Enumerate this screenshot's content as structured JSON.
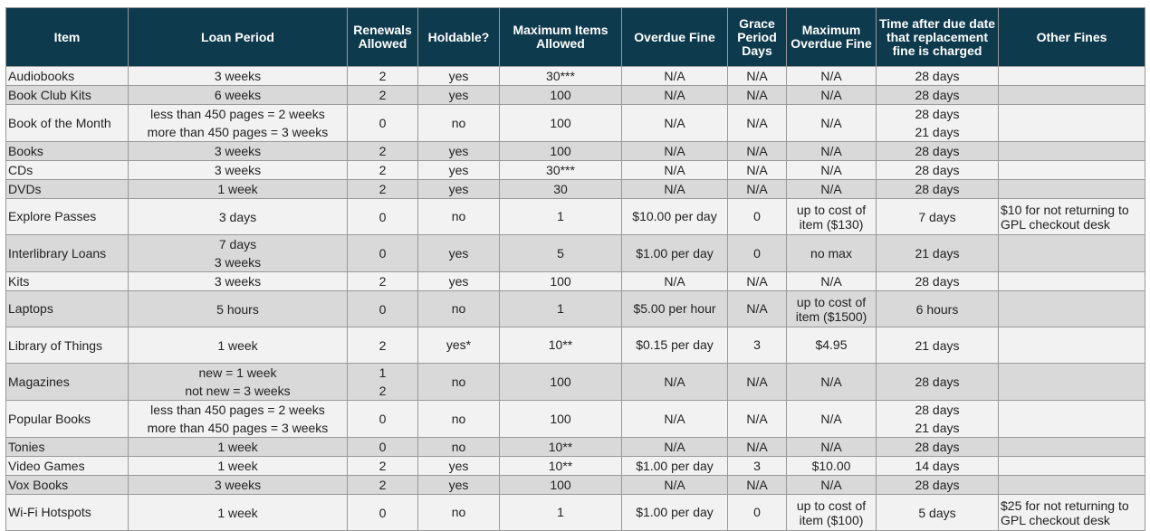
{
  "headers": [
    "Item",
    "Loan Period",
    "Renewals Allowed",
    "Holdable?",
    "Maximum Items Allowed",
    "Overdue Fine",
    "Grace Period Days",
    "Maximum Overdue Fine",
    "Time after due date that replacement fine is charged",
    "Other Fines"
  ],
  "rows": [
    {
      "item": "Audiobooks",
      "loan": [
        "3 weeks"
      ],
      "renewals": [
        "2"
      ],
      "holdable": "yes",
      "max_items": "30***",
      "overdue_fine": "N/A",
      "grace": "N/A",
      "max_fine": "N/A",
      "replacement": [
        "28 days"
      ],
      "other": ""
    },
    {
      "item": "Book Club Kits",
      "loan": [
        "6 weeks"
      ],
      "renewals": [
        "2"
      ],
      "holdable": "yes",
      "max_items": "100",
      "overdue_fine": "N/A",
      "grace": "N/A",
      "max_fine": "N/A",
      "replacement": [
        "28 days"
      ],
      "other": ""
    },
    {
      "item": "Book of the Month",
      "loan": [
        "less than 450 pages = 2 weeks",
        "more than 450 pages = 3 weeks"
      ],
      "renewals": [
        "0"
      ],
      "holdable": "no",
      "max_items": "100",
      "overdue_fine": "N/A",
      "grace": "N/A",
      "max_fine": "N/A",
      "replacement": [
        "28 days",
        "21 days"
      ],
      "other": ""
    },
    {
      "item": "Books",
      "loan": [
        "3 weeks"
      ],
      "renewals": [
        "2"
      ],
      "holdable": "yes",
      "max_items": "100",
      "overdue_fine": "N/A",
      "grace": "N/A",
      "max_fine": "N/A",
      "replacement": [
        "28 days"
      ],
      "other": ""
    },
    {
      "item": "CDs",
      "loan": [
        "3 weeks"
      ],
      "renewals": [
        "2"
      ],
      "holdable": "yes",
      "max_items": "30***",
      "overdue_fine": "N/A",
      "grace": "N/A",
      "max_fine": "N/A",
      "replacement": [
        "28 days"
      ],
      "other": ""
    },
    {
      "item": "DVDs",
      "loan": [
        "1 week"
      ],
      "renewals": [
        "2"
      ],
      "holdable": "yes",
      "max_items": "30",
      "overdue_fine": "N/A",
      "grace": "N/A",
      "max_fine": "N/A",
      "replacement": [
        "28 days"
      ],
      "other": ""
    },
    {
      "item": "Explore Passes",
      "loan": [
        "3 days"
      ],
      "renewals": [
        "0"
      ],
      "holdable": "no",
      "max_items": "1",
      "overdue_fine": "$10.00 per day",
      "grace": "0",
      "max_fine": "up to cost of item ($130)",
      "replacement": [
        "7 days"
      ],
      "other": "$10 for not returning to GPL checkout desk"
    },
    {
      "item": "Interlibrary Loans",
      "loan": [
        "7 days",
        "3 weeks"
      ],
      "renewals": [
        "0"
      ],
      "holdable": "yes",
      "max_items": "5",
      "overdue_fine": "$1.00 per day",
      "grace": "0",
      "max_fine": "no max",
      "replacement": [
        "21 days"
      ],
      "other": ""
    },
    {
      "item": "Kits",
      "loan": [
        "3 weeks"
      ],
      "renewals": [
        "2"
      ],
      "holdable": "yes",
      "max_items": "100",
      "overdue_fine": "N/A",
      "grace": "N/A",
      "max_fine": "N/A",
      "replacement": [
        "28 days"
      ],
      "other": ""
    },
    {
      "item": "Laptops",
      "loan": [
        "5 hours"
      ],
      "renewals": [
        "0"
      ],
      "holdable": "no",
      "max_items": "1",
      "overdue_fine": "$5.00 per hour",
      "grace": "N/A",
      "max_fine": "up to cost of item ($1500)",
      "replacement": [
        "6 hours"
      ],
      "other": ""
    },
    {
      "item": "Library of Things",
      "loan": [
        "1 week"
      ],
      "renewals": [
        "2"
      ],
      "holdable": "yes*",
      "max_items": "10**",
      "overdue_fine": "$0.15 per day",
      "grace": "3",
      "max_fine": "$4.95",
      "replacement": [
        "21 days"
      ],
      "other": ""
    },
    {
      "item": "Magazines",
      "loan": [
        "new = 1 week",
        "not new = 3 weeks"
      ],
      "renewals": [
        "1",
        "2"
      ],
      "holdable": "no",
      "max_items": "100",
      "overdue_fine": "N/A",
      "grace": "N/A",
      "max_fine": "N/A",
      "replacement": [
        "28 days"
      ],
      "other": ""
    },
    {
      "item": "Popular Books",
      "loan": [
        "less than 450 pages = 2 weeks",
        "more than 450 pages = 3 weeks"
      ],
      "renewals": [
        "0"
      ],
      "holdable": "no",
      "max_items": "100",
      "overdue_fine": "N/A",
      "grace": "N/A",
      "max_fine": "N/A",
      "replacement": [
        "28 days",
        "21 days"
      ],
      "other": ""
    },
    {
      "item": "Tonies",
      "loan": [
        "1 week"
      ],
      "renewals": [
        "0"
      ],
      "holdable": "no",
      "max_items": "10**",
      "overdue_fine": "N/A",
      "grace": "N/A",
      "max_fine": "N/A",
      "replacement": [
        "28 days"
      ],
      "other": ""
    },
    {
      "item": "Video Games",
      "loan": [
        "1 week"
      ],
      "renewals": [
        "2"
      ],
      "holdable": "yes",
      "max_items": "10**",
      "overdue_fine": "$1.00 per day",
      "grace": "3",
      "max_fine": "$10.00",
      "replacement": [
        "14 days"
      ],
      "other": ""
    },
    {
      "item": "Vox Books",
      "loan": [
        "3 weeks"
      ],
      "renewals": [
        "2"
      ],
      "holdable": "yes",
      "max_items": "100",
      "overdue_fine": "N/A",
      "grace": "N/A",
      "max_fine": "N/A",
      "replacement": [
        "28 days"
      ],
      "other": ""
    },
    {
      "item": "Wi-Fi Hotspots",
      "loan": [
        "1 week"
      ],
      "renewals": [
        "0"
      ],
      "holdable": "no",
      "max_items": "1",
      "overdue_fine": "$1.00 per day",
      "grace": "0",
      "max_fine": "up to cost of item ($100)",
      "replacement": [
        "5 days"
      ],
      "other": "$25 for not returning to GPL checkout desk"
    }
  ]
}
